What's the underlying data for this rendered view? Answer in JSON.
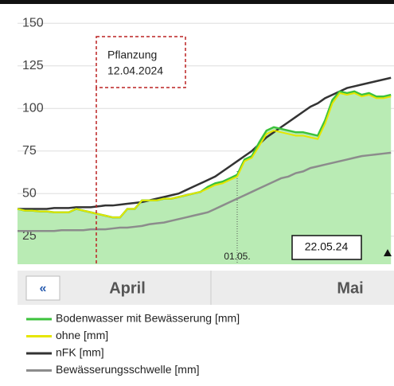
{
  "chart_data": {
    "type": "line",
    "categories": [
      null,
      null,
      null,
      null,
      null,
      null,
      null,
      null,
      null,
      null,
      null,
      null,
      null,
      null,
      null,
      null,
      null,
      null,
      null,
      null,
      null,
      null,
      null,
      null,
      null,
      null,
      null,
      null,
      null,
      null,
      "01.05.",
      null,
      null,
      null,
      null,
      null,
      null,
      null,
      null,
      null,
      null,
      null,
      null,
      null,
      null,
      null,
      null,
      null,
      null,
      null,
      null,
      null
    ],
    "series": [
      {
        "name": "Bodenwasser mit Bewässerung [mm]",
        "color": "#3cc23c",
        "fill": "#b9ebb4",
        "values": [
          41,
          40,
          40,
          39.5,
          39.5,
          39,
          39,
          39,
          41,
          40,
          39,
          38,
          37,
          36,
          36,
          41,
          41,
          46,
          46,
          46,
          47,
          47,
          48,
          49,
          50,
          51,
          54,
          56,
          57,
          59,
          61,
          70,
          72,
          80,
          87,
          89,
          88,
          87,
          86,
          86,
          85,
          84,
          93,
          105,
          110,
          109,
          110,
          108,
          109,
          107,
          107,
          108
        ]
      },
      {
        "name": "ohne [mm]",
        "color": "#e6e600",
        "values": [
          41,
          40,
          40,
          39.5,
          39.5,
          39,
          39,
          39,
          41,
          40,
          39,
          38,
          37,
          36,
          36,
          41,
          41,
          46,
          46,
          46,
          47,
          47,
          48,
          49,
          50,
          51,
          53,
          55,
          56,
          58,
          60,
          69,
          71,
          78,
          85,
          87,
          86,
          85,
          84,
          84,
          83,
          82,
          91,
          103,
          109,
          108,
          109,
          107,
          108,
          106,
          106,
          107
        ]
      },
      {
        "name": "nFK [mm]",
        "color": "#333333",
        "values": [
          41,
          41,
          41,
          41,
          41,
          41.5,
          41.5,
          41.5,
          42,
          42,
          42,
          42.5,
          43,
          43,
          43.5,
          44,
          44.5,
          45,
          46,
          47,
          48,
          49,
          50,
          52,
          54,
          56,
          58,
          60,
          63,
          66,
          69,
          72,
          75,
          79,
          83,
          86,
          89,
          92,
          95,
          98,
          101,
          103,
          106,
          108,
          110,
          112,
          113,
          114,
          115,
          116,
          117,
          118
        ]
      },
      {
        "name": "Bewässerungsschwelle [mm]",
        "color": "#8c8c8c",
        "values": [
          28,
          28,
          28,
          28,
          28,
          28,
          28.5,
          28.5,
          28.5,
          28.5,
          29,
          29,
          29,
          29.5,
          30,
          30,
          30.5,
          31,
          32,
          32.5,
          33,
          34,
          35,
          36,
          37,
          38,
          39,
          41,
          43,
          45,
          47,
          49,
          51,
          53,
          55,
          57,
          59,
          60,
          62,
          63,
          65,
          66,
          67,
          68,
          69,
          70,
          71,
          72,
          72.5,
          73,
          73.5,
          74
        ]
      }
    ],
    "ylim": [
      8.5,
      159
    ],
    "yticks": [
      25,
      50,
      75,
      100,
      125,
      150
    ],
    "grid": true,
    "annotation": [
      "Pflanzung",
      "12.04.2024"
    ],
    "date_box": "22.05.24"
  },
  "navigation": {
    "back": "«",
    "months": [
      "April",
      "Mai"
    ]
  }
}
